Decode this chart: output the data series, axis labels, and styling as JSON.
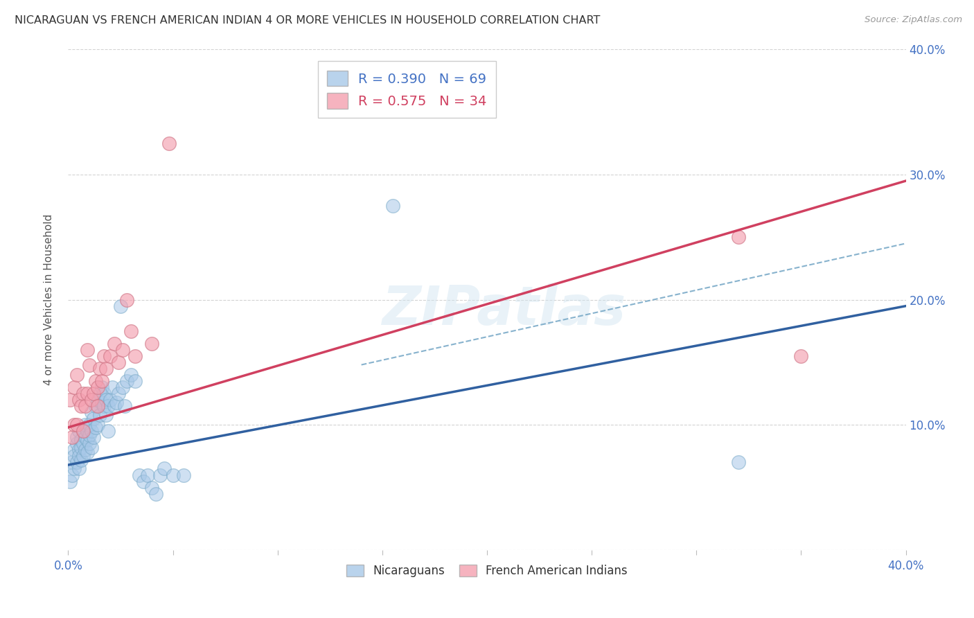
{
  "title": "NICARAGUAN VS FRENCH AMERICAN INDIAN 4 OR MORE VEHICLES IN HOUSEHOLD CORRELATION CHART",
  "source": "Source: ZipAtlas.com",
  "ylabel": "4 or more Vehicles in Household",
  "xlim": [
    0.0,
    0.4
  ],
  "ylim": [
    0.0,
    0.4
  ],
  "blue_color": "#a8c8e8",
  "pink_color": "#f4a0b0",
  "blue_edge_color": "#7aaac8",
  "pink_edge_color": "#d07888",
  "blue_line_color": "#3060a0",
  "pink_line_color": "#d04060",
  "dashed_line_color": "#7aaac8",
  "watermark": "ZIPatlas",
  "blue_line_x0": 0.0,
  "blue_line_y0": 0.068,
  "blue_line_x1": 0.4,
  "blue_line_y1": 0.195,
  "pink_line_x0": 0.0,
  "pink_line_y0": 0.098,
  "pink_line_x1": 0.4,
  "pink_line_y1": 0.295,
  "dashed_line_x0": 0.14,
  "dashed_line_y0": 0.148,
  "dashed_line_x1": 0.4,
  "dashed_line_y1": 0.245,
  "blue_scatter_x": [
    0.001,
    0.002,
    0.002,
    0.003,
    0.003,
    0.003,
    0.004,
    0.004,
    0.004,
    0.005,
    0.005,
    0.005,
    0.005,
    0.006,
    0.006,
    0.006,
    0.007,
    0.007,
    0.007,
    0.008,
    0.008,
    0.008,
    0.009,
    0.009,
    0.009,
    0.01,
    0.01,
    0.01,
    0.011,
    0.011,
    0.011,
    0.012,
    0.012,
    0.013,
    0.013,
    0.014,
    0.014,
    0.015,
    0.015,
    0.016,
    0.016,
    0.017,
    0.017,
    0.018,
    0.018,
    0.019,
    0.019,
    0.02,
    0.021,
    0.022,
    0.023,
    0.024,
    0.025,
    0.026,
    0.027,
    0.028,
    0.03,
    0.032,
    0.034,
    0.036,
    0.038,
    0.04,
    0.042,
    0.044,
    0.046,
    0.05,
    0.055,
    0.155,
    0.32
  ],
  "blue_scatter_y": [
    0.055,
    0.07,
    0.06,
    0.08,
    0.065,
    0.075,
    0.085,
    0.07,
    0.09,
    0.08,
    0.095,
    0.065,
    0.075,
    0.088,
    0.072,
    0.082,
    0.085,
    0.095,
    0.075,
    0.09,
    0.08,
    0.1,
    0.088,
    0.078,
    0.095,
    0.1,
    0.085,
    0.092,
    0.11,
    0.095,
    0.082,
    0.105,
    0.09,
    0.115,
    0.098,
    0.12,
    0.1,
    0.125,
    0.108,
    0.118,
    0.13,
    0.115,
    0.125,
    0.12,
    0.108,
    0.115,
    0.095,
    0.12,
    0.13,
    0.115,
    0.118,
    0.125,
    0.195,
    0.13,
    0.115,
    0.135,
    0.14,
    0.135,
    0.06,
    0.055,
    0.06,
    0.05,
    0.045,
    0.06,
    0.065,
    0.06,
    0.06,
    0.275,
    0.07
  ],
  "pink_scatter_x": [
    0.001,
    0.002,
    0.003,
    0.003,
    0.004,
    0.004,
    0.005,
    0.006,
    0.007,
    0.007,
    0.008,
    0.009,
    0.009,
    0.01,
    0.011,
    0.012,
    0.013,
    0.014,
    0.014,
    0.015,
    0.016,
    0.017,
    0.018,
    0.02,
    0.022,
    0.024,
    0.026,
    0.028,
    0.03,
    0.032,
    0.04,
    0.048,
    0.32,
    0.35
  ],
  "pink_scatter_y": [
    0.12,
    0.09,
    0.1,
    0.13,
    0.14,
    0.1,
    0.12,
    0.115,
    0.125,
    0.095,
    0.115,
    0.16,
    0.125,
    0.148,
    0.12,
    0.125,
    0.135,
    0.13,
    0.115,
    0.145,
    0.135,
    0.155,
    0.145,
    0.155,
    0.165,
    0.15,
    0.16,
    0.2,
    0.175,
    0.155,
    0.165,
    0.325,
    0.25,
    0.155
  ]
}
